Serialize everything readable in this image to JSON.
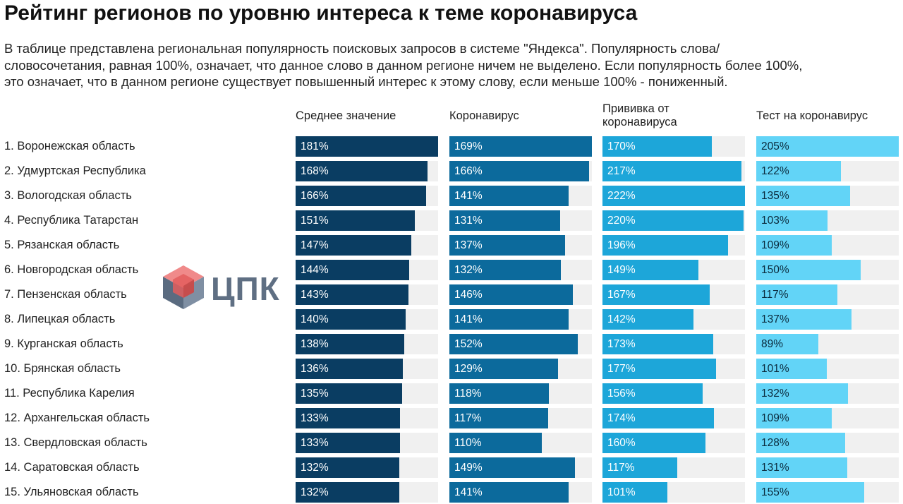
{
  "title": "Рейтинг регионов по уровню интереса к теме коронавируса",
  "description_lines": [
    "В таблице представлена региональная популярность поисковых запросов в системе \"Яндекса\". Популярность слова/",
    "словосочетания, равная 100%, означает, что данное слово в данном регионе ничем не выделено. Если популярность более 100%,",
    "это означает, что в данном регионе существует повышенный интерес к этому слову, если меньше 100% - пониженный."
  ],
  "logo": {
    "text": "ЦПК",
    "icon": "cube-logo-icon"
  },
  "colors": [
    "#0a3d62",
    "#0c6a9c",
    "#1da6d9",
    "#62d4f7"
  ],
  "label_text_colors": [
    "#ffffff",
    "#ffffff",
    "#ffffff",
    "#0a2a3c"
  ],
  "chart_data": {
    "type": "bar",
    "orientation": "horizontal",
    "unit": "%",
    "title": "Рейтинг регионов по уровню интереса к теме коронавируса",
    "categories": [
      "1. Воронежская область",
      "2. Удмуртская Республика",
      "3. Вологодская область",
      "4. Республика Татарстан",
      "5. Рязанская область",
      "6. Новгородская область",
      "7. Пензенская область",
      "8. Липецкая область",
      "9. Курганская область",
      "10. Брянская область",
      "11. Республика Карелия",
      "12. Архангельская область",
      "13. Свердловская область",
      "14. Саратовская область",
      "15. Ульяновская область"
    ],
    "series": [
      {
        "name": "Среднее значение",
        "max": 181,
        "values": [
          181,
          168,
          166,
          151,
          147,
          144,
          143,
          140,
          138,
          136,
          135,
          133,
          133,
          132,
          132
        ]
      },
      {
        "name": "Коронавирус",
        "max": 169,
        "values": [
          169,
          166,
          141,
          131,
          137,
          132,
          146,
          141,
          152,
          129,
          118,
          117,
          110,
          149,
          141
        ]
      },
      {
        "name": "Прививка от коронавируса",
        "max": 222,
        "values": [
          170,
          217,
          222,
          220,
          196,
          149,
          167,
          142,
          173,
          177,
          156,
          174,
          160,
          117,
          101
        ]
      },
      {
        "name": "Тест на коронавирус",
        "max": 205,
        "values": [
          205,
          122,
          135,
          103,
          109,
          150,
          117,
          137,
          89,
          101,
          132,
          109,
          128,
          131,
          155
        ]
      }
    ]
  }
}
